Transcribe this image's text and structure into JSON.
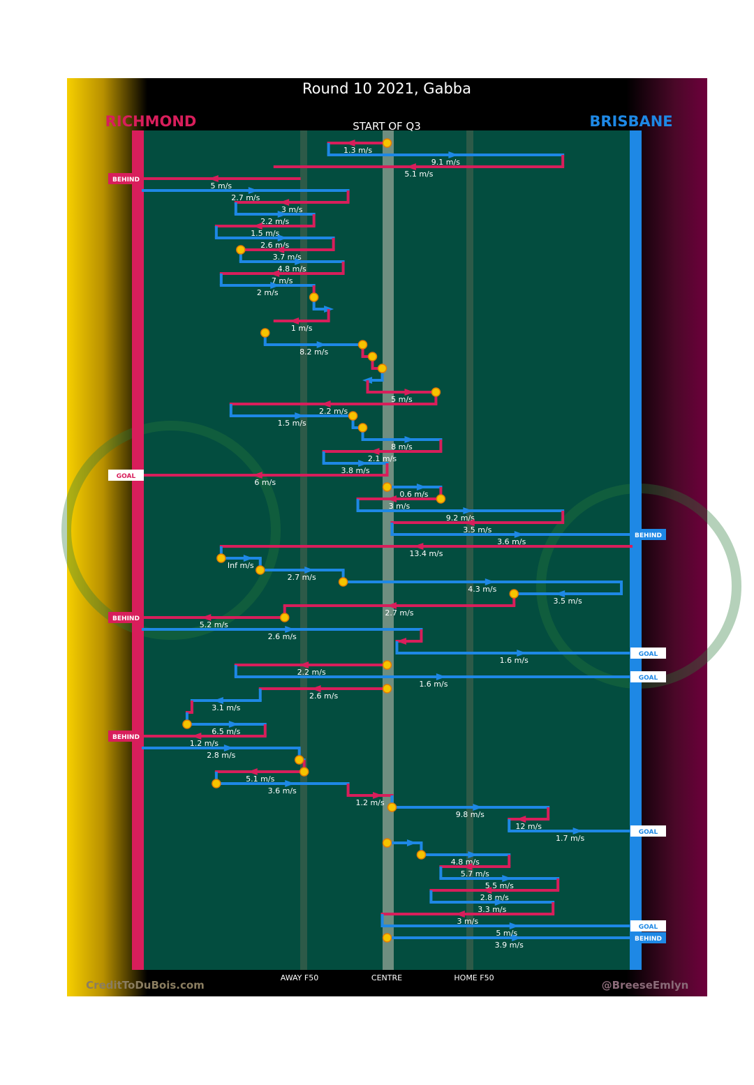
{
  "chart_data": {
    "type": "line",
    "title": "Round 10 2021, Gabba",
    "subtitle": "START OF Q3",
    "teams": {
      "left": "RICHMOND",
      "right": "BRISBANE"
    },
    "colors": {
      "left": "#d81e5b",
      "right": "#1e88e5",
      "field": "#034d3f",
      "bg": "#000000",
      "marker": "#f5c400"
    },
    "axis": {
      "xlim": [
        0,
        100
      ],
      "x_ticks": [
        {
          "label": "AWAY F50",
          "value": 31
        },
        {
          "label": "CENTRE",
          "value": 50
        },
        {
          "label": "HOME F50",
          "value": 69
        }
      ]
    },
    "credits": {
      "left": "CreditToDuBois.com",
      "right": "@BreeseEmlyn"
    },
    "segments": [
      {
        "team": "R",
        "from": 50,
        "to": 38,
        "speed": "1.3 m/s",
        "m0": true
      },
      {
        "team": "B",
        "from": 38,
        "to": 86,
        "speed": "9.1 m/s"
      },
      {
        "team": "R",
        "from": 86,
        "to": 27,
        "speed": "5.1 m/s"
      },
      {
        "team": "R",
        "from": 32,
        "to": 0,
        "speed": "5 m/s",
        "outcome": "BEHIND"
      },
      {
        "team": "B",
        "from": 0,
        "to": 42,
        "speed": "2.7 m/s"
      },
      {
        "team": "R",
        "from": 42,
        "to": 19,
        "speed": "3 m/s"
      },
      {
        "team": "B",
        "from": 19,
        "to": 35,
        "speed": "2.2 m/s"
      },
      {
        "team": "R",
        "from": 35,
        "to": 15,
        "speed": "1.5 m/s"
      },
      {
        "team": "B",
        "from": 15,
        "to": 39,
        "speed": "2.6 m/s"
      },
      {
        "team": "R",
        "from": 39,
        "to": 20,
        "speed": "3.7 m/s",
        "m1": true
      },
      {
        "team": "B",
        "from": 20,
        "to": 41,
        "speed": "4.8 m/s"
      },
      {
        "team": "R",
        "from": 41,
        "to": 16,
        "speed": "7 m/s"
      },
      {
        "team": "B",
        "from": 16,
        "to": 35,
        "speed": "2 m/s"
      },
      {
        "team": "R",
        "from": 35,
        "to": 35,
        "speed": "",
        "m1": true
      },
      {
        "team": "B",
        "from": 35,
        "to": 38,
        "speed": ""
      },
      {
        "team": "R",
        "from": 38,
        "to": 27,
        "speed": "1 m/s"
      },
      {
        "team": "R",
        "from": 25,
        "to": 25,
        "speed": "",
        "m1": true
      },
      {
        "team": "B",
        "from": 25,
        "to": 45,
        "speed": "8.2 m/s",
        "m1": true
      },
      {
        "team": "R",
        "from": 45,
        "to": 47,
        "speed": "",
        "m1": true
      },
      {
        "team": "R",
        "from": 47,
        "to": 49,
        "speed": "",
        "m1": true
      },
      {
        "team": "B",
        "from": 49,
        "to": 46,
        "speed": ""
      },
      {
        "team": "R",
        "from": 46,
        "to": 60,
        "speed": "5 m/s",
        "m1": true
      },
      {
        "team": "R",
        "from": 60,
        "to": 18,
        "speed": "2.2 m/s"
      },
      {
        "team": "B",
        "from": 18,
        "to": 43,
        "speed": "1.5 m/s",
        "m1": true
      },
      {
        "team": "B",
        "from": 43,
        "to": 45,
        "speed": "",
        "m1": true
      },
      {
        "team": "B",
        "from": 45,
        "to": 61,
        "speed": "8 m/s"
      },
      {
        "team": "R",
        "from": 61,
        "to": 37,
        "speed": "2.1 m/s"
      },
      {
        "team": "B",
        "from": 37,
        "to": 50,
        "speed": "3.8 m/s"
      },
      {
        "team": "R",
        "from": 50,
        "to": 0,
        "speed": "6 m/s",
        "outcome": "GOAL"
      },
      {
        "team": "B",
        "from": 50,
        "to": 61,
        "speed": "0.6 m/s",
        "m0": true
      },
      {
        "team": "R",
        "from": 61,
        "to": 44,
        "speed": "3 m/s",
        "m0": true
      },
      {
        "team": "B",
        "from": 44,
        "to": 86,
        "speed": "9.2 m/s"
      },
      {
        "team": "R",
        "from": 86,
        "to": 51,
        "speed": "3.5 m/s"
      },
      {
        "team": "B",
        "from": 51,
        "to": 100,
        "speed": "3.6 m/s",
        "outcome": "BEHIND"
      },
      {
        "team": "R",
        "from": 100,
        "to": 16,
        "speed": "13.4 m/s"
      },
      {
        "team": "B",
        "from": 16,
        "to": 24,
        "speed": "Inf m/s",
        "m0": true
      },
      {
        "team": "B",
        "from": 24,
        "to": 41,
        "speed": "2.7 m/s",
        "m0": true
      },
      {
        "team": "B",
        "from": 41,
        "to": 98,
        "speed": "4.3 m/s",
        "m0": true
      },
      {
        "team": "B",
        "from": 98,
        "to": 76,
        "speed": "3.5 m/s",
        "m1": true
      },
      {
        "team": "R",
        "from": 76,
        "to": 29,
        "speed": "2.7 m/s"
      },
      {
        "team": "R",
        "from": 29,
        "to": 0,
        "speed": "5.2 m/s",
        "m0": true,
        "outcome": "BEHIND"
      },
      {
        "team": "B",
        "from": 0,
        "to": 57,
        "speed": "2.6 m/s"
      },
      {
        "team": "R",
        "from": 57,
        "to": 52,
        "speed": ""
      },
      {
        "team": "B",
        "from": 52,
        "to": 100,
        "speed": "1.6 m/s",
        "outcome": "GOAL"
      },
      {
        "team": "R",
        "from": 50,
        "to": 19,
        "speed": "2.2 m/s",
        "m0": true
      },
      {
        "team": "B",
        "from": 19,
        "to": 100,
        "speed": "1.6 m/s",
        "outcome": "GOAL"
      },
      {
        "team": "R",
        "from": 50,
        "to": 24,
        "speed": "2.6 m/s",
        "m0": true
      },
      {
        "team": "B",
        "from": 24,
        "to": 10,
        "speed": "3.1 m/s"
      },
      {
        "team": "R",
        "from": 10,
        "to": 9,
        "speed": ""
      },
      {
        "team": "B",
        "from": 9,
        "to": 25,
        "speed": "6.5 m/s",
        "m0": true
      },
      {
        "team": "R",
        "from": 25,
        "to": 0,
        "speed": "1.2 m/s",
        "outcome": "BEHIND"
      },
      {
        "team": "B",
        "from": 0,
        "to": 32,
        "speed": "2.8 m/s"
      },
      {
        "team": "B",
        "from": 32,
        "to": 33,
        "speed": "",
        "m0": true
      },
      {
        "team": "R",
        "from": 33,
        "to": 15,
        "speed": "5.1 m/s",
        "m0": true
      },
      {
        "team": "B",
        "from": 15,
        "to": 42,
        "speed": "3.6 m/s",
        "m0": true
      },
      {
        "team": "R",
        "from": 42,
        "to": 51,
        "speed": "1.2 m/s"
      },
      {
        "team": "B",
        "from": 51,
        "to": 83,
        "speed": "9.8 m/s",
        "m0": true
      },
      {
        "team": "R",
        "from": 83,
        "to": 75,
        "speed": "12 m/s"
      },
      {
        "team": "B",
        "from": 75,
        "to": 100,
        "speed": "1.7 m/s",
        "outcome": "GOAL"
      },
      {
        "team": "B",
        "from": 50,
        "to": 57,
        "speed": "",
        "m0": true
      },
      {
        "team": "B",
        "from": 57,
        "to": 75,
        "speed": "4.8 m/s",
        "m0": true
      },
      {
        "team": "R",
        "from": 75,
        "to": 61,
        "speed": "5.7 m/s"
      },
      {
        "team": "B",
        "from": 61,
        "to": 85,
        "speed": "5.5 m/s"
      },
      {
        "team": "R",
        "from": 85,
        "to": 59,
        "speed": "2.8 m/s"
      },
      {
        "team": "B",
        "from": 59,
        "to": 84,
        "speed": "3.3 m/s"
      },
      {
        "team": "R",
        "from": 84,
        "to": 49,
        "speed": "3 m/s"
      },
      {
        "team": "B",
        "from": 49,
        "to": 100,
        "speed": "5 m/s",
        "outcome": "GOAL"
      },
      {
        "team": "B",
        "from": 50,
        "to": 100,
        "speed": "3.9 m/s",
        "m0": true,
        "outcome": "BEHIND"
      }
    ]
  }
}
